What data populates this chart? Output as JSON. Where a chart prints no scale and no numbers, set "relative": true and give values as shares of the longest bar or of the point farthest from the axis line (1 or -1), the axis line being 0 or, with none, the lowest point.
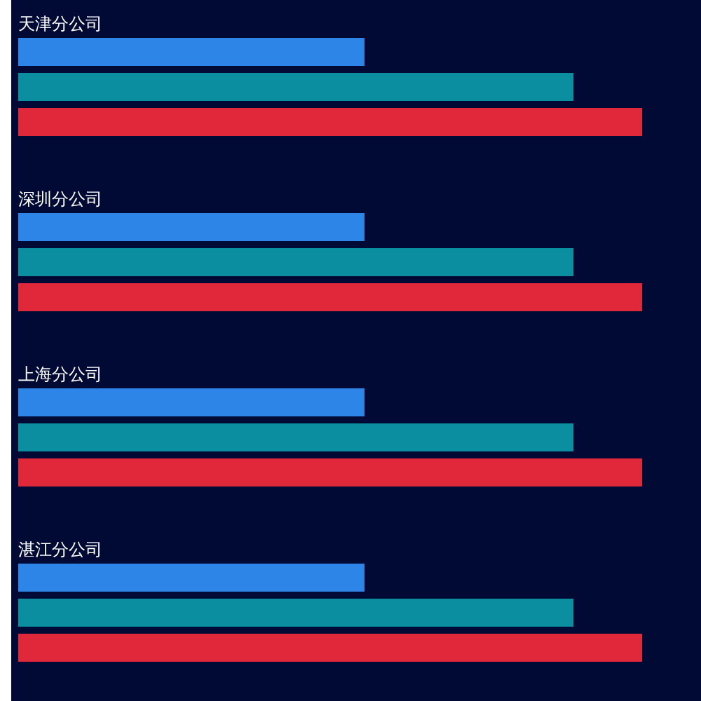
{
  "chart_data": {
    "type": "bar",
    "orientation": "horizontal",
    "relative": true,
    "categories": [
      "天津分公司",
      "深圳分公司",
      "上海分公司",
      "湛江分公司"
    ],
    "series": [
      {
        "color": "#2e85e8",
        "values": [
          0.555,
          0.555,
          0.555,
          0.555
        ]
      },
      {
        "color": "#0a8ea0",
        "values": [
          0.89,
          0.89,
          0.89,
          0.89
        ]
      },
      {
        "color": "#e0283a",
        "values": [
          1,
          1,
          1,
          1
        ]
      }
    ]
  }
}
